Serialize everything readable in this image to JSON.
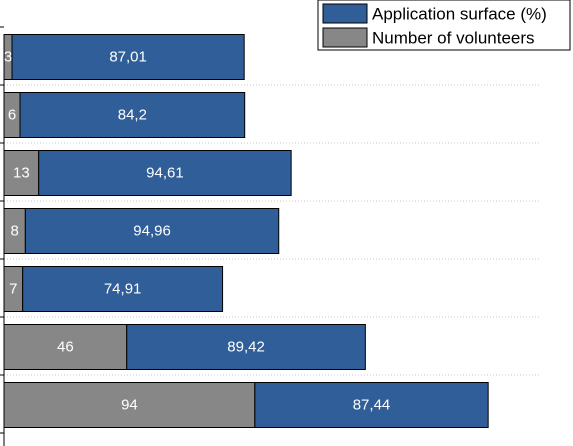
{
  "chart_data": {
    "type": "bar",
    "orientation": "horizontal",
    "stacked": true,
    "grid": true,
    "legend_position": "top-right",
    "categories": [
      "",
      "",
      "",
      "",
      "",
      "",
      ""
    ],
    "series": [
      {
        "name": "Number of volunteers",
        "color": "#878787",
        "values": [
          3,
          6,
          13,
          8,
          7,
          46,
          94
        ],
        "labels": [
          "3",
          "6",
          "13",
          "8",
          "7",
          "46",
          "94"
        ]
      },
      {
        "name": "Application surface (%)",
        "color": "#2f5e98",
        "values": [
          87.01,
          84.2,
          94.61,
          94.96,
          74.91,
          89.42,
          87.44
        ],
        "labels": [
          "87,01",
          "84,2",
          "94,61",
          "94,96",
          "74,91",
          "89,42",
          "87,44"
        ]
      }
    ],
    "legend_order": [
      1,
      0
    ],
    "xlim": [
      0,
      190
    ]
  }
}
